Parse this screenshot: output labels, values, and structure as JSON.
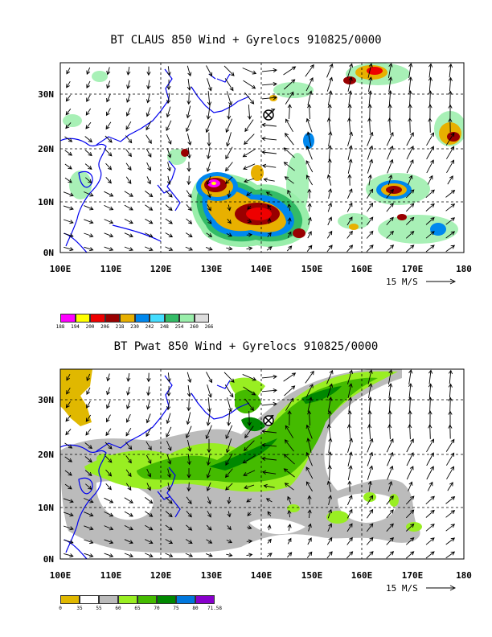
{
  "panels": [
    {
      "title": "BT CLAUS 850 Wind + Gyrelocs 910825/0000",
      "x_ticks": [
        "100E",
        "110E",
        "120E",
        "130E",
        "140E",
        "150E",
        "160E",
        "170E",
        "180"
      ],
      "y_ticks": [
        "0N",
        "10N",
        "20N",
        "30N"
      ],
      "scale_label": "15 M/S",
      "legend": {
        "labels": [
          "188",
          "194",
          "200",
          "206",
          "218",
          "230",
          "242",
          "248",
          "254",
          "260",
          "266"
        ],
        "colors": [
          "#ff00ff",
          "#ffff00",
          "#ee0000",
          "#990000",
          "#e8b000",
          "#0088ee",
          "#44ddff",
          "#33bb66",
          "#99eeaa",
          "#dddddd"
        ]
      },
      "storm_center": {
        "lon": 141.2,
        "lat": 26.3
      }
    },
    {
      "title": "BT Pwat 850 Wind + Gyrelocs 910825/0000",
      "x_ticks": [
        "100E",
        "110E",
        "120E",
        "130E",
        "140E",
        "150E",
        "160E",
        "170E",
        "180"
      ],
      "y_ticks": [
        "0N",
        "10N",
        "20N",
        "30N"
      ],
      "scale_label": "15 M/S",
      "legend": {
        "labels": [
          "0",
          "35",
          "55",
          "60",
          "65",
          "70",
          "75",
          "80",
          "71.58"
        ],
        "colors": [
          "#e0b800",
          "#ffffff",
          "#bbbbbb",
          "#99ee22",
          "#44bb00",
          "#008800",
          "#0077dd",
          "#8800cc"
        ]
      },
      "storm_center": {
        "lon": 141.2,
        "lat": 26.3
      }
    }
  ]
}
